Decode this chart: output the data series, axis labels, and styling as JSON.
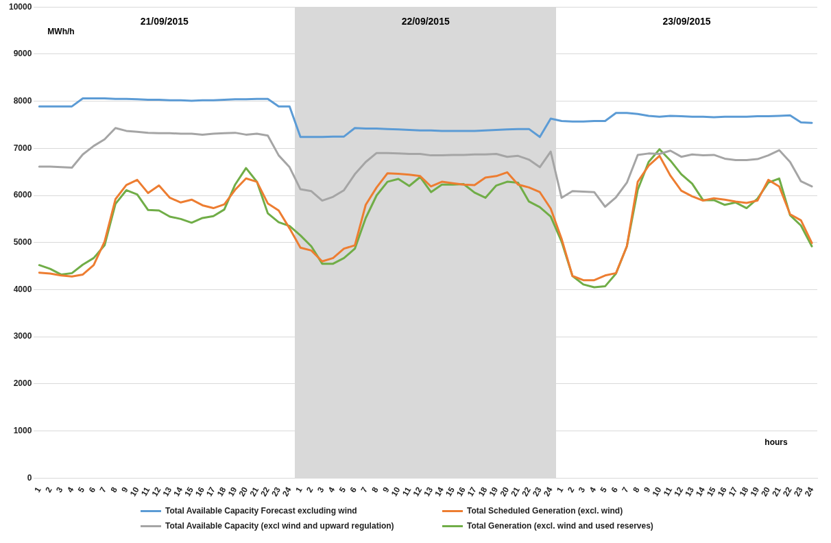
{
  "chart_data": {
    "type": "line",
    "ylabel": "MWh/h",
    "xlabel": "hours",
    "categories": [
      "1",
      "2",
      "3",
      "4",
      "5",
      "6",
      "7",
      "8",
      "9",
      "10",
      "11",
      "12",
      "13",
      "14",
      "15",
      "16",
      "17",
      "18",
      "19",
      "20",
      "21",
      "22",
      "23",
      "24",
      "1",
      "2",
      "3",
      "4",
      "5",
      "6",
      "7",
      "8",
      "9",
      "10",
      "11",
      "12",
      "13",
      "14",
      "15",
      "16",
      "17",
      "18",
      "19",
      "20",
      "21",
      "22",
      "23",
      "24",
      "1",
      "2",
      "3",
      "4",
      "5",
      "6",
      "7",
      "8",
      "9",
      "10",
      "11",
      "12",
      "13",
      "14",
      "15",
      "16",
      "17",
      "18",
      "19",
      "20",
      "21",
      "22",
      "23",
      "24"
    ],
    "ylim": [
      0,
      10000
    ],
    "yticks": [
      0,
      1000,
      2000,
      3000,
      4000,
      5000,
      6000,
      7000,
      8000,
      9000,
      10000
    ],
    "grid": "y",
    "legend": "bottom",
    "marker": "none",
    "line_style": "solid",
    "annotations": [
      "21/09/2015",
      "22/09/2015",
      "23/09/2015"
    ],
    "series": [
      {
        "name": "Total Available Capacity Forecast excluding wind",
        "color": "#5b9bd5",
        "values": [
          7890,
          7890,
          7890,
          7890,
          8060,
          8060,
          8060,
          8050,
          8050,
          8040,
          8030,
          8030,
          8020,
          8020,
          8010,
          8020,
          8020,
          8030,
          8040,
          8040,
          8050,
          8050,
          7890,
          7890,
          7240,
          7240,
          7240,
          7250,
          7250,
          7430,
          7420,
          7420,
          7410,
          7400,
          7390,
          7380,
          7380,
          7370,
          7370,
          7370,
          7370,
          7380,
          7390,
          7400,
          7410,
          7410,
          7240,
          7630,
          7580,
          7570,
          7570,
          7580,
          7580,
          7750,
          7750,
          7730,
          7690,
          7670,
          7690,
          7680,
          7670,
          7670,
          7660,
          7670,
          7670,
          7670,
          7680,
          7680,
          7690,
          7700,
          7550,
          7540
        ]
      },
      {
        "name": "Total Scheduled Generation (excl. wind)",
        "color": "#ed7d31",
        "values": [
          4360,
          4340,
          4300,
          4280,
          4320,
          4520,
          5020,
          5920,
          6220,
          6330,
          6050,
          6210,
          5950,
          5850,
          5910,
          5790,
          5730,
          5810,
          6120,
          6360,
          6290,
          5830,
          5680,
          5300,
          4890,
          4830,
          4600,
          4670,
          4870,
          4940,
          5800,
          6170,
          6470,
          6460,
          6440,
          6410,
          6190,
          6290,
          6260,
          6230,
          6220,
          6380,
          6410,
          6490,
          6230,
          6170,
          6070,
          5720,
          5080,
          4290,
          4200,
          4200,
          4300,
          4350,
          4920,
          6290,
          6630,
          6840,
          6420,
          6100,
          5980,
          5890,
          5940,
          5910,
          5870,
          5840,
          5890,
          6330,
          6190,
          5600,
          5470,
          4990
        ]
      },
      {
        "name": "Total Available Capacity (excl wind and upward regulation)",
        "color": "#a5a5a5",
        "values": [
          6610,
          6610,
          6600,
          6590,
          6870,
          7050,
          7190,
          7430,
          7370,
          7350,
          7330,
          7320,
          7320,
          7310,
          7310,
          7290,
          7310,
          7320,
          7330,
          7290,
          7310,
          7270,
          6850,
          6600,
          6130,
          6090,
          5890,
          5970,
          6110,
          6450,
          6710,
          6900,
          6900,
          6890,
          6880,
          6880,
          6850,
          6850,
          6860,
          6860,
          6870,
          6870,
          6880,
          6820,
          6840,
          6760,
          6600,
          6930,
          5950,
          6090,
          6080,
          6070,
          5760,
          5960,
          6270,
          6860,
          6890,
          6880,
          6950,
          6820,
          6870,
          6850,
          6860,
          6780,
          6750,
          6750,
          6770,
          6850,
          6960,
          6710,
          6300,
          6190
        ]
      },
      {
        "name": "Total Generation (excl. wind and used reserves)",
        "color": "#70ad47",
        "values": [
          4520,
          4440,
          4320,
          4350,
          4530,
          4670,
          4940,
          5820,
          6110,
          6020,
          5690,
          5680,
          5550,
          5500,
          5420,
          5520,
          5560,
          5700,
          6230,
          6580,
          6290,
          5620,
          5430,
          5350,
          5150,
          4920,
          4550,
          4550,
          4670,
          4870,
          5520,
          6000,
          6290,
          6350,
          6200,
          6390,
          6070,
          6230,
          6230,
          6240,
          6060,
          5950,
          6210,
          6290,
          6270,
          5870,
          5750,
          5550,
          5020,
          4290,
          4110,
          4050,
          4070,
          4340,
          4920,
          6120,
          6710,
          6980,
          6740,
          6450,
          6250,
          5900,
          5900,
          5800,
          5850,
          5730,
          5930,
          6270,
          6360,
          5580,
          5360,
          4920
        ]
      }
    ]
  }
}
